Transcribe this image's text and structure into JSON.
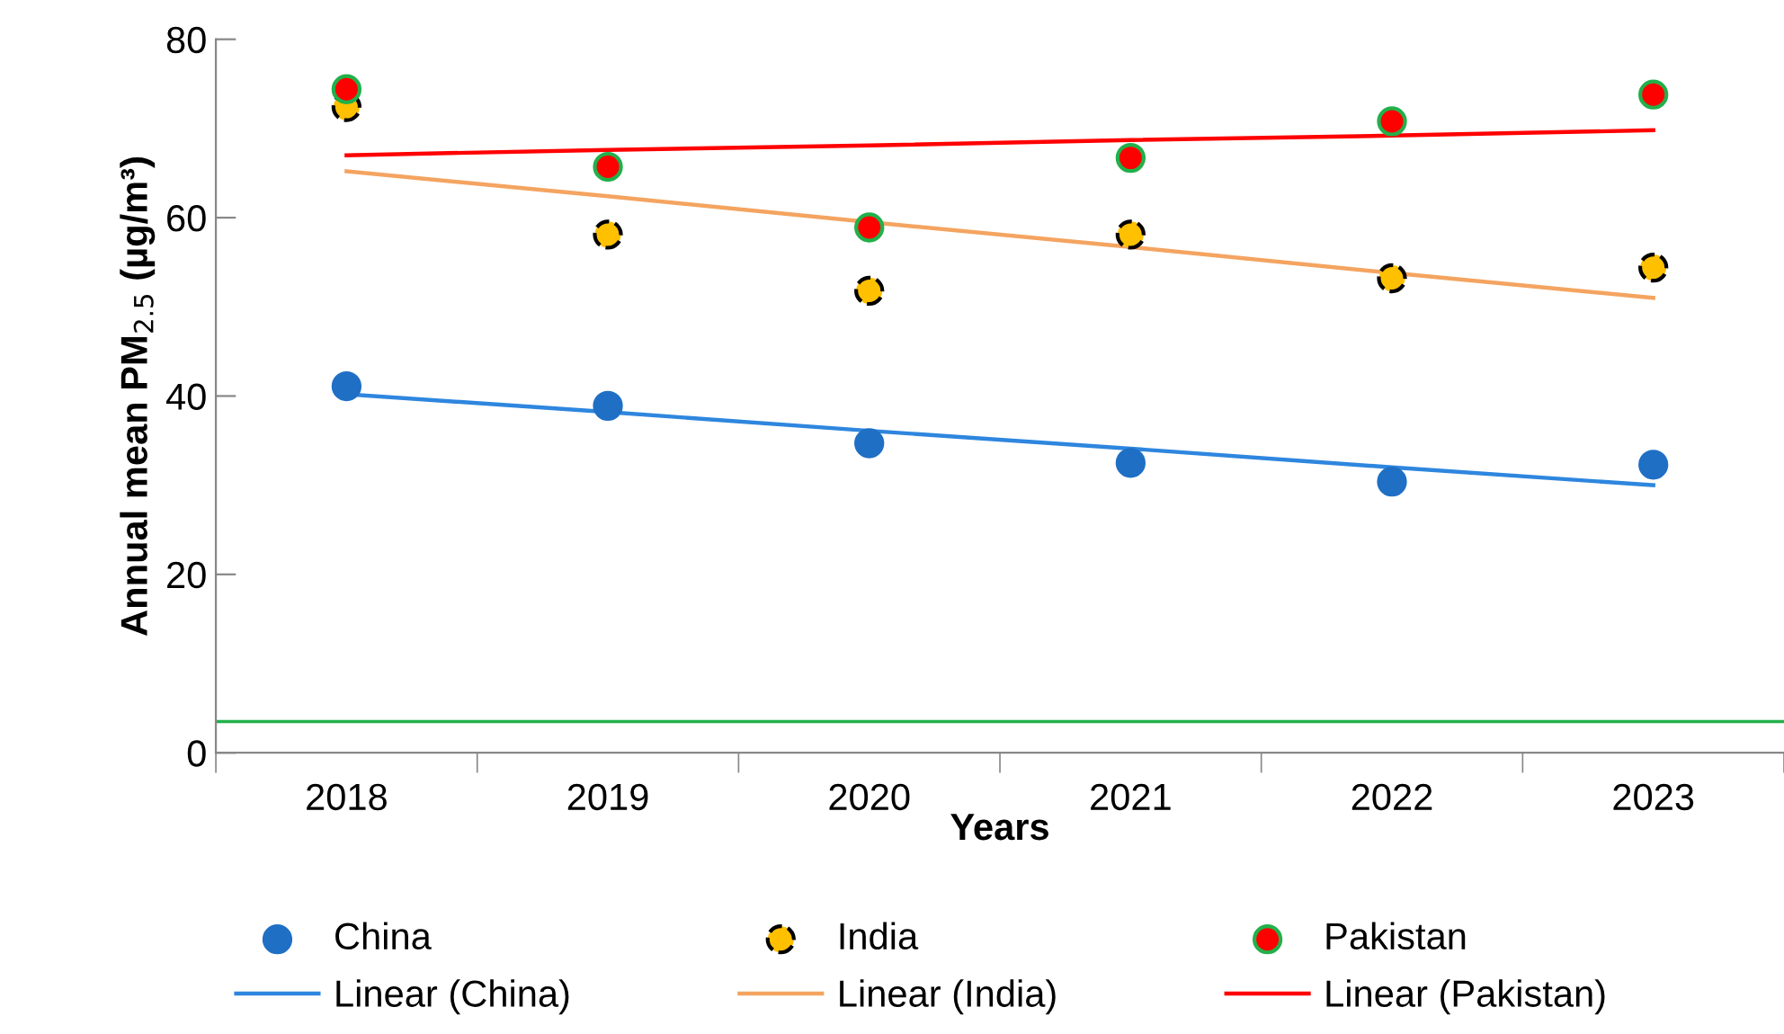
{
  "chart_data": {
    "type": "scatter",
    "xlabel": "Years",
    "ylabel": "Annual mean PM$_{2.5}$ (µg/m³)",
    "categories": [
      "2018",
      "2019",
      "2020",
      "2021",
      "2022",
      "2023"
    ],
    "ylim": [
      0,
      80
    ],
    "yticks": [
      0,
      20,
      40,
      60,
      80
    ],
    "grid": false,
    "legend": "bottom",
    "marker": "circle",
    "series": [
      {
        "name": "China",
        "color": "#1f6fc5",
        "values": [
          41.1,
          38.9,
          34.7,
          32.5,
          30.4,
          32.3
        ]
      },
      {
        "name": "India",
        "color": "#ffc000",
        "values": [
          72.4,
          58.1,
          51.8,
          58.1,
          53.2,
          54.4
        ]
      },
      {
        "name": "Pakistan",
        "color": "#ff0000",
        "values": [
          74.4,
          65.7,
          58.9,
          66.7,
          70.8,
          73.8
        ]
      },
      {
        "name": "Linear (China)",
        "type": "line",
        "marker": "none",
        "color": "#2e86de",
        "values": [
          40.2,
          38.2,
          36.1,
          34.1,
          32.0,
          30.0
        ]
      },
      {
        "name": "Linear (India)",
        "type": "line",
        "marker": "none",
        "color": "#f4a460",
        "values": [
          65.2,
          62.4,
          59.5,
          56.7,
          53.8,
          51.0
        ]
      },
      {
        "name": "Linear (Pakistan)",
        "type": "line",
        "marker": "none",
        "color": "#ff0000",
        "values": [
          67.0,
          67.6,
          68.1,
          68.7,
          69.2,
          69.8
        ]
      }
    ],
    "ref_lines": [
      {
        "axis": "y",
        "value": 3.5,
        "color": "#22b04a"
      }
    ]
  }
}
